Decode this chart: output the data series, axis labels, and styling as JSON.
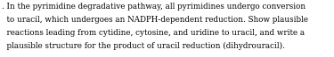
{
  "lines": [
    ". In the pyrimidine degradative pathway, all pyrimidines undergo conversion",
    "  to uracil, which undergoes an NADPH-dependent reduction. Show plausible",
    "  reactions leading from cytidine, cytosine, and uridine to uracil, and write a",
    "  plausible structure for the product of uracil reduction (dihydrouracil)."
  ],
  "font_size": 6.3,
  "font_family": "serif",
  "text_color": "#000000",
  "background_color": "#ffffff"
}
